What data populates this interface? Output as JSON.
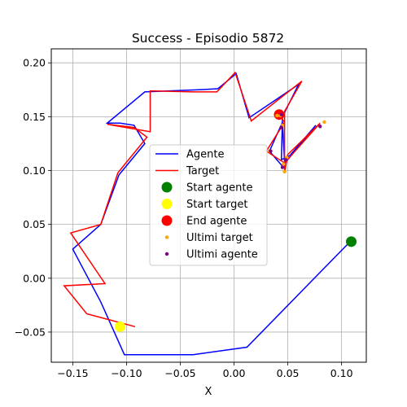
{
  "chart_data": {
    "type": "line",
    "title": "Success - Episodio 5872",
    "xlabel": "X",
    "ylabel": "",
    "xlim": [
      -0.17,
      0.123
    ],
    "ylim": [
      -0.078,
      0.213
    ],
    "xticks": [
      -0.15,
      -0.1,
      -0.05,
      0.0,
      0.05,
      0.1
    ],
    "xtick_labels": [
      "−0.15",
      "−0.10",
      "−0.05",
      "0.00",
      "0.05",
      "0.10"
    ],
    "yticks": [
      -0.05,
      0.0,
      0.05,
      0.1,
      0.15,
      0.2
    ],
    "ytick_labels": [
      "−0.05",
      "0.00",
      "0.05",
      "0.10",
      "0.15",
      "0.20"
    ],
    "grid": true,
    "legend_position": "center",
    "series": [
      {
        "name": "Agente",
        "kind": "line",
        "color": "#0000ff",
        "x": [
          0.107,
          0.012,
          -0.038,
          -0.102,
          -0.124,
          -0.15,
          -0.124,
          -0.107,
          -0.083,
          -0.093,
          -0.106,
          -0.118,
          -0.083,
          -0.033,
          -0.015,
          0.002,
          0.014,
          0.06,
          0.045,
          0.044,
          0.052,
          0.076,
          0.045,
          0.033,
          0.045,
          0.047
        ],
        "y": [
          0.033,
          -0.064,
          -0.071,
          -0.071,
          -0.022,
          0.027,
          0.05,
          0.096,
          0.125,
          0.142,
          0.144,
          0.144,
          0.173,
          0.175,
          0.176,
          0.19,
          0.149,
          0.18,
          0.15,
          0.11,
          0.114,
          0.142,
          0.104,
          0.118,
          0.145,
          0.108
        ]
      },
      {
        "name": "Target",
        "kind": "line",
        "color": "#ff0000",
        "x": [
          -0.092,
          -0.137,
          -0.158,
          -0.12,
          -0.152,
          -0.124,
          -0.108,
          -0.081,
          -0.093,
          -0.118,
          -0.078,
          -0.078,
          -0.038,
          -0.016,
          0.001,
          0.016,
          0.063,
          0.047,
          0.047,
          0.05,
          0.08,
          0.047,
          0.03,
          0.047,
          0.041
        ],
        "y": [
          -0.045,
          -0.033,
          -0.007,
          -0.005,
          0.042,
          0.05,
          0.098,
          0.131,
          0.14,
          0.143,
          0.136,
          0.174,
          0.173,
          0.173,
          0.191,
          0.146,
          0.183,
          0.155,
          0.098,
          0.115,
          0.144,
          0.107,
          0.118,
          0.145,
          0.152
        ]
      },
      {
        "name": "Start agente",
        "kind": "marker",
        "color": "#008000",
        "x": [
          0.109
        ],
        "y": [
          0.034
        ]
      },
      {
        "name": "Start target",
        "kind": "marker",
        "color": "#ffff00",
        "x": [
          -0.106
        ],
        "y": [
          -0.045
        ]
      },
      {
        "name": "End agente",
        "kind": "marker",
        "color": "#ff0000",
        "x": [
          0.042
        ],
        "y": [
          0.152
        ]
      },
      {
        "name": "Ultimi target",
        "kind": "small_marker",
        "color": "#ffa500",
        "x": [
          0.047,
          0.049,
          0.084,
          0.046,
          0.045,
          0.033,
          0.04,
          0.043
        ],
        "y": [
          0.099,
          0.112,
          0.145,
          0.106,
          0.142,
          0.118,
          0.151,
          0.151
        ]
      },
      {
        "name": "Ultimi agente",
        "kind": "small_marker",
        "color": "#800080",
        "x": [
          0.045,
          0.048,
          0.08,
          0.044,
          0.034,
          0.044
        ],
        "y": [
          0.103,
          0.11,
          0.141,
          0.14,
          0.118,
          0.152
        ]
      }
    ]
  }
}
